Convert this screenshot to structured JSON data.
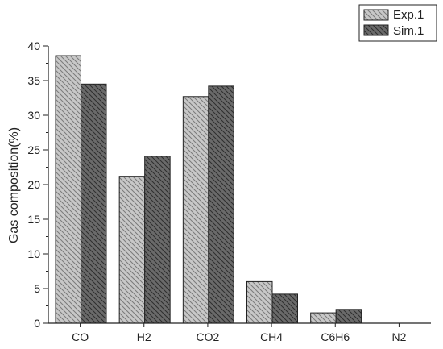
{
  "chart_data": {
    "type": "bar",
    "title": "",
    "xlabel": "",
    "ylabel": "Gas composition(%)",
    "categories": [
      "CO",
      "H2",
      "CO2",
      "CH4",
      "C6H6",
      "N2"
    ],
    "series": [
      {
        "name": "Exp.1",
        "values": [
          38.6,
          21.2,
          32.7,
          6.0,
          1.5,
          0.0
        ]
      },
      {
        "name": "Sim.1",
        "values": [
          34.5,
          24.1,
          34.2,
          4.2,
          2.0,
          0.0
        ]
      }
    ],
    "ylim": [
      0,
      40
    ],
    "yticks": [
      "0",
      "5",
      "10",
      "15",
      "20",
      "25",
      "30",
      "35",
      "40"
    ],
    "grid": false,
    "legend_position": "top-right"
  },
  "colors": {
    "exp_fill": "#c8c8c8",
    "exp_hatch": "#7a7a7a",
    "sim_fill": "#6a6a6a",
    "sim_hatch": "#2e2e2e",
    "axis": "#222222"
  }
}
